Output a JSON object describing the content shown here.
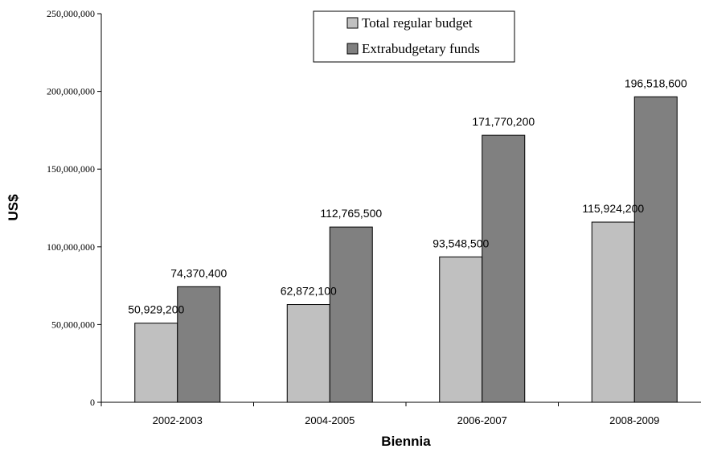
{
  "chart_data": {
    "type": "bar",
    "xlabel": "Biennia",
    "ylabel": "US$",
    "ylim": [
      0,
      250000000
    ],
    "yticks": [
      0,
      50000000,
      100000000,
      150000000,
      200000000,
      250000000
    ],
    "ytick_labels": [
      "0",
      "50,000,000",
      "100,000,000",
      "150,000,000",
      "200,000,000",
      "250,000,000"
    ],
    "categories": [
      "2002-2003",
      "2004-2005",
      "2006-2007",
      "2008-2009"
    ],
    "series": [
      {
        "name": "Total regular budget",
        "color": "#c0c0c0",
        "values": [
          50929200,
          62872100,
          93548500,
          115924200
        ],
        "data_labels": [
          "50,929,200",
          "62,872,100",
          "93,548,500",
          "115,924,200"
        ]
      },
      {
        "name": "Extrabudgetary funds",
        "color": "#808080",
        "values": [
          74370400,
          112765500,
          171770200,
          196518600
        ],
        "data_labels": [
          "74,370,400",
          "112,765,500",
          "171,770,200",
          "196,518,600"
        ]
      }
    ],
    "grid": false,
    "legend_position": "top-center"
  }
}
